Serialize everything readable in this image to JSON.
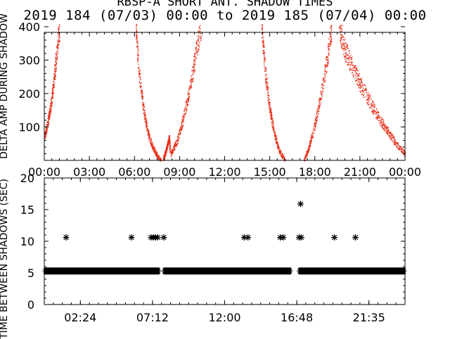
{
  "title": {
    "line1": "RBSP-A SHORT ANT. SHADOW TIMES",
    "line2": "2019 184 (07/03) 00:00 to 2019 185 (07/04) 00:00"
  },
  "colors": {
    "top_points": "#e8321e",
    "bottom_points": "#000000",
    "axes": "#000000"
  },
  "chart_data": [
    {
      "type": "scatter",
      "ylabel": "DELTA AMP DURING SHADOW",
      "xlim": [
        "00:00",
        "24:00"
      ],
      "ylim": [
        0,
        400
      ],
      "x_ticks": [
        "00:00",
        "03:00",
        "06:00",
        "09:00",
        "12:00",
        "15:00",
        "18:00",
        "21:00",
        "00:00"
      ],
      "y_ticks": [
        100,
        200,
        300,
        400
      ],
      "series": [
        {
          "marker": "dot",
          "color": "#e8321e",
          "segments": [
            {
              "start": "00:00",
              "end": "01:00",
              "values": [
                [
                  0.0,
                  70
                ],
                [
                  0.2,
                  110
                ],
                [
                  0.4,
                  160
                ],
                [
                  0.6,
                  230
                ],
                [
                  0.8,
                  320
                ],
                [
                  1.0,
                  400
                ]
              ]
            },
            {
              "start": "06:05",
              "end": "07:45",
              "values": [
                [
                  6.08,
                  400
                ],
                [
                  6.3,
                  260
                ],
                [
                  6.6,
                  150
                ],
                [
                  6.9,
                  80
                ],
                [
                  7.2,
                  40
                ],
                [
                  7.5,
                  15
                ],
                [
                  7.75,
                  0
                ]
              ]
            },
            {
              "start": "07:55",
              "end": "08:30",
              "values": [
                [
                  7.9,
                  5
                ],
                [
                  8.05,
                  25
                ],
                [
                  8.2,
                  50
                ],
                [
                  8.3,
                  70
                ],
                [
                  8.35,
                  30
                ]
              ]
            },
            {
              "start": "08:30",
              "end": "10:25",
              "values": [
                [
                  8.4,
                  20
                ],
                [
                  8.8,
                  55
                ],
                [
                  9.2,
                  120
                ],
                [
                  9.6,
                  200
                ],
                [
                  10.0,
                  300
                ],
                [
                  10.4,
                  400
                ]
              ]
            },
            {
              "start": "14:25",
              "end": "16:05",
              "values": [
                [
                  14.45,
                  400
                ],
                [
                  14.7,
                  260
                ],
                [
                  15.0,
                  150
                ],
                [
                  15.3,
                  80
                ],
                [
                  15.6,
                  30
                ],
                [
                  16.0,
                  0
                ]
              ]
            },
            {
              "start": "17:15",
              "end": "19:10",
              "values": [
                [
                  17.25,
                  0
                ],
                [
                  17.6,
                  40
                ],
                [
                  18.0,
                  110
                ],
                [
                  18.4,
                  200
                ],
                [
                  18.8,
                  300
                ],
                [
                  19.1,
                  400
                ]
              ]
            },
            {
              "start": "19:30",
              "end": "24:00",
              "values": [
                [
                  19.6,
                  400
                ],
                [
                  20.0,
                  330
                ],
                [
                  20.5,
                  280
                ],
                [
                  21.0,
                  230
                ],
                [
                  21.6,
                  180
                ],
                [
                  22.2,
                  130
                ],
                [
                  22.8,
                  90
                ],
                [
                  23.4,
                  50
                ],
                [
                  24.0,
                  20
                ]
              ]
            }
          ]
        }
      ]
    },
    {
      "type": "scatter",
      "ylabel": "TIME BETWEEN SHADOWS (SEC)",
      "xlim": [
        "00:00",
        "24:00"
      ],
      "ylim": [
        0,
        20
      ],
      "x_ticks": [
        "02:24",
        "07:12",
        "12:00",
        "16:48",
        "21:35"
      ],
      "y_ticks": [
        0,
        5,
        10,
        15,
        20
      ],
      "series": [
        {
          "marker": "asterisk",
          "color": "#000000",
          "baseline_value": 5.3,
          "baseline_ranges": [
            [
              "00:00",
              "07:40"
            ],
            [
              "07:55",
              "16:25"
            ],
            [
              "16:55",
              "24:00"
            ]
          ],
          "points": [
            [
              1.45,
              10.6
            ],
            [
              5.8,
              10.6
            ],
            [
              7.1,
              10.6
            ],
            [
              7.25,
              10.6
            ],
            [
              7.4,
              10.6
            ],
            [
              7.55,
              10.6
            ],
            [
              7.95,
              10.6
            ],
            [
              13.3,
              10.6
            ],
            [
              13.55,
              10.6
            ],
            [
              15.7,
              10.6
            ],
            [
              15.9,
              10.6
            ],
            [
              16.95,
              10.6
            ],
            [
              17.1,
              10.6
            ],
            [
              17.05,
              15.9
            ],
            [
              19.3,
              10.6
            ],
            [
              20.7,
              10.6
            ]
          ]
        }
      ]
    }
  ]
}
